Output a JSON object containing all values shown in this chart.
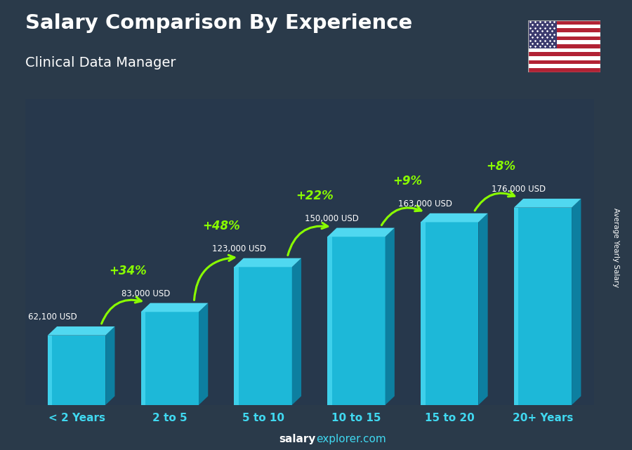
{
  "title": "Salary Comparison By Experience",
  "subtitle": "Clinical Data Manager",
  "categories": [
    "< 2 Years",
    "2 to 5",
    "5 to 10",
    "10 to 15",
    "15 to 20",
    "20+ Years"
  ],
  "values": [
    62100,
    83000,
    123000,
    150000,
    163000,
    176000
  ],
  "labels": [
    "62,100 USD",
    "83,000 USD",
    "123,000 USD",
    "150,000 USD",
    "163,000 USD",
    "176,000 USD"
  ],
  "pct_changes": [
    "+34%",
    "+48%",
    "+22%",
    "+9%",
    "+8%"
  ],
  "bar_color_front": "#1db8d8",
  "bar_color_top": "#50d8f0",
  "bar_color_side": "#0d7fa0",
  "bg_color": "#2a3a4a",
  "title_color": "#ffffff",
  "subtitle_color": "#ffffff",
  "label_color": "#ffffff",
  "pct_color": "#8aff00",
  "xlabel_color": "#40d8f0",
  "footer_salary_color": "#ffffff",
  "footer_explorer_color": "#40d8f0",
  "footer_text": "salaryexplorer.com",
  "ylabel_text": "Average Yearly Salary",
  "figsize": [
    9.0,
    6.41
  ],
  "dpi": 100
}
